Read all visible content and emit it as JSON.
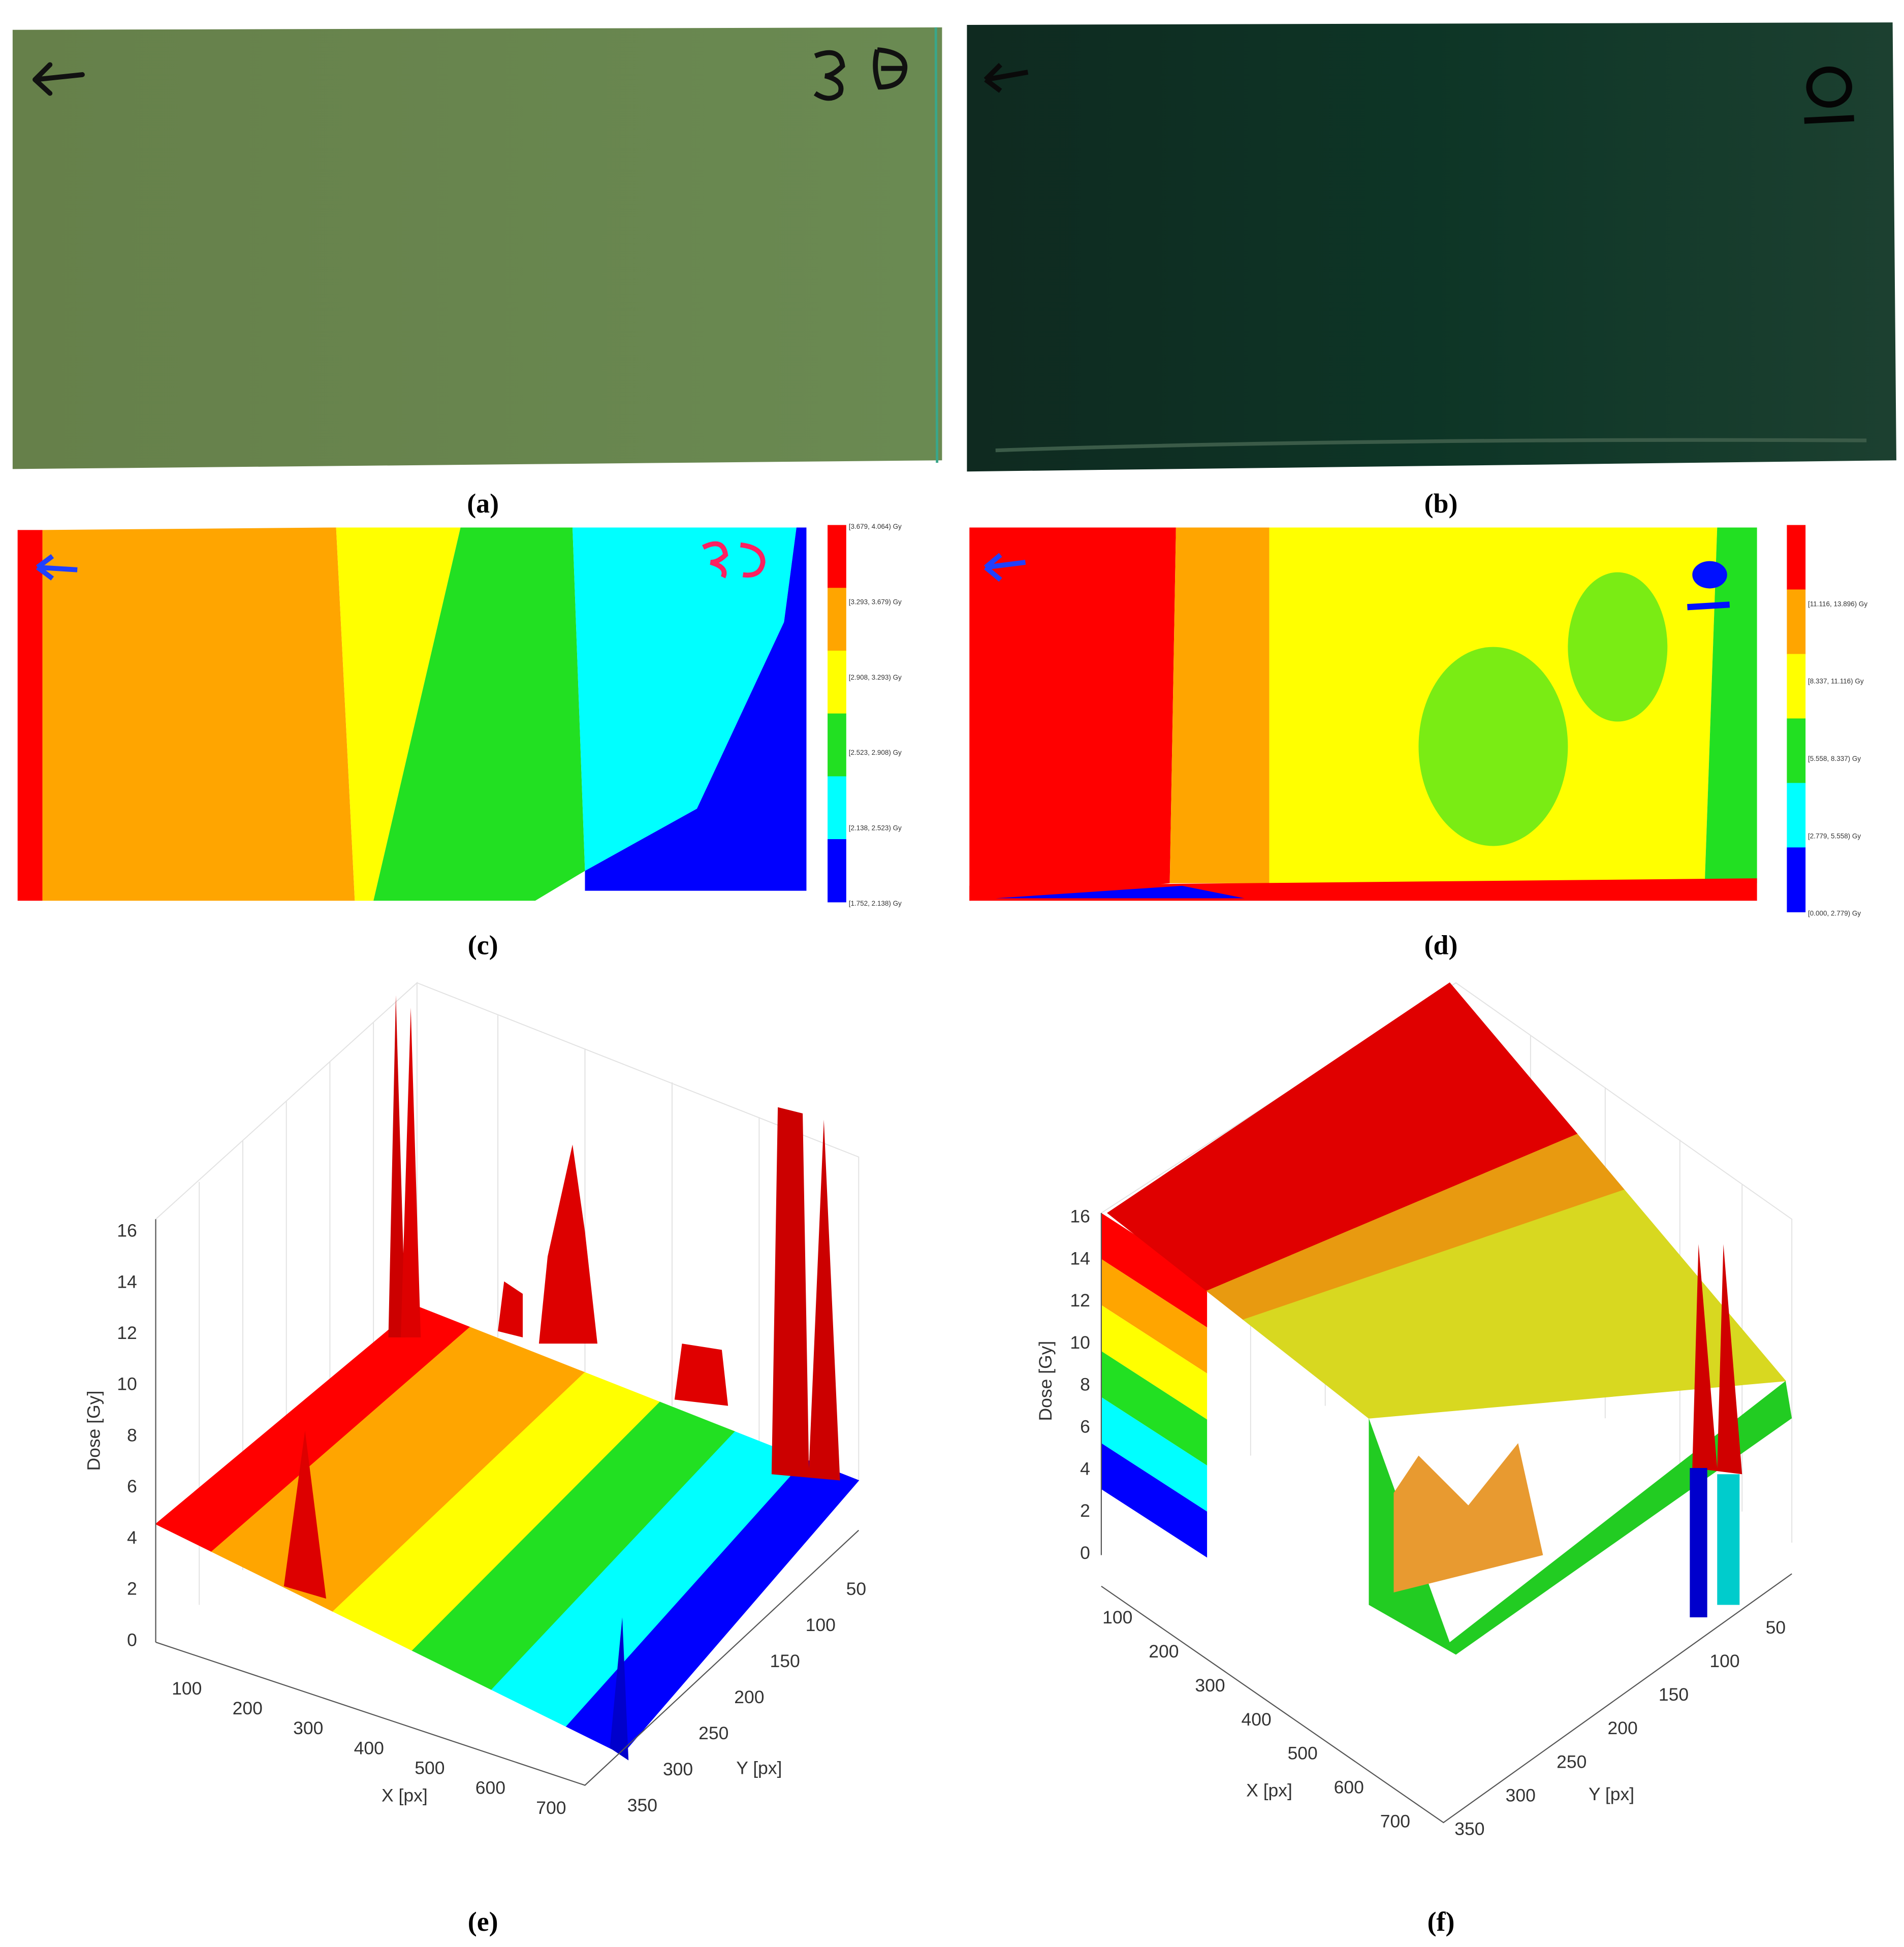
{
  "panels": [
    {
      "label": "(a)"
    },
    {
      "label": "(b)"
    },
    {
      "label": "(c)",
      "colorbar_labels": [
        "[3.679, 4.064) Gy",
        "[3.293, 3.679) Gy",
        "[2.908, 3.293) Gy",
        "[2.523, 2.908) Gy",
        "[2.138, 2.523) Gy",
        "[1.752, 2.138) Gy"
      ]
    },
    {
      "label": "(d)",
      "colorbar_labels": [
        "[11.116, 13.896) Gy",
        "[8.337, 11.116) Gy",
        "[5.558, 8.337) Gy",
        "[2.779, 5.558) Gy",
        "[0.000, 2.779) Gy"
      ]
    },
    {
      "label": "(e)",
      "z_label": "Dose [Gy]",
      "x_label": "X [px]",
      "y_label": "Y [px]",
      "z_ticks": [
        0,
        2,
        4,
        6,
        8,
        10,
        12,
        14,
        16
      ],
      "x_ticks": [
        100,
        200,
        300,
        400,
        500,
        600,
        700
      ],
      "y_ticks": [
        50,
        100,
        150,
        200,
        250,
        300,
        350
      ]
    },
    {
      "label": "(f)",
      "z_label": "Dose [Gy]",
      "x_label": "X [px]",
      "y_label": "Y [px]",
      "z_ticks": [
        0,
        2,
        4,
        6,
        8,
        10,
        12,
        14,
        16
      ],
      "x_ticks": [
        100,
        200,
        300,
        400,
        500,
        600,
        700
      ],
      "y_ticks": [
        50,
        100,
        150,
        200,
        250,
        300,
        350
      ]
    }
  ]
}
